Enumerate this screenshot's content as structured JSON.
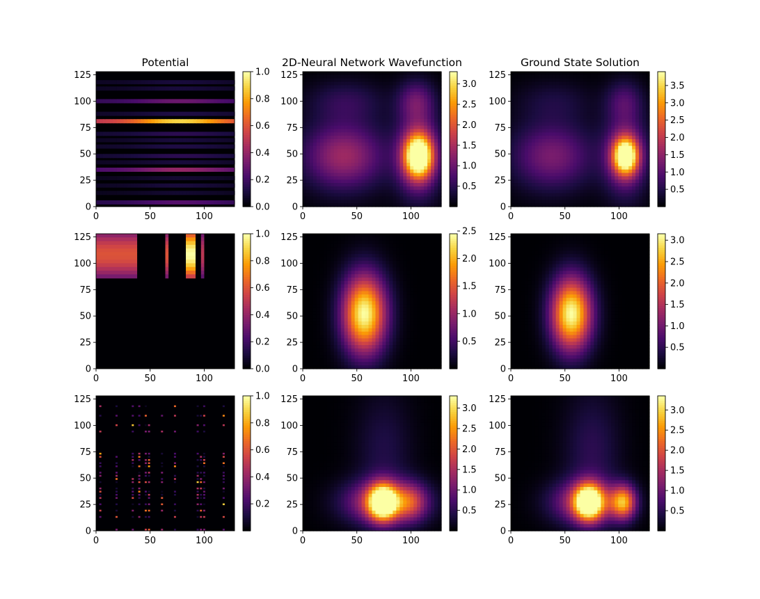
{
  "figure": {
    "colormap": "inferno",
    "colormap_stops": [
      "#000004",
      "#1b0c41",
      "#4a0c6b",
      "#781c6d",
      "#a52c60",
      "#cf4446",
      "#ed6925",
      "#fb9b06",
      "#f7d13d",
      "#fcffa4"
    ],
    "axis_tick_labels": [
      "0",
      "25",
      "50",
      "75",
      "100",
      "125"
    ],
    "x_tick_labels": [
      "0",
      "50",
      "100"
    ]
  },
  "chart_data": [
    {
      "type": "heatmap",
      "row": 1,
      "col": 1,
      "title": "Potential",
      "xlim": [
        0,
        128
      ],
      "ylim": [
        0,
        128
      ],
      "colorbar": {
        "vmin": 0.0,
        "vmax": 1.0,
        "ticks": [
          "0.0",
          "0.2",
          "0.4",
          "0.6",
          "0.8",
          "1.0"
        ]
      },
      "pattern": "horizontal_stripes",
      "stripes": [
        [
          81,
          0.9
        ],
        [
          100,
          0.3
        ],
        [
          35,
          0.4
        ],
        [
          48,
          0.15
        ],
        [
          57,
          0.12
        ],
        [
          63,
          0.1
        ],
        [
          69,
          0.15
        ],
        [
          88,
          0.12
        ],
        [
          112,
          0.1
        ],
        [
          118,
          0.1
        ],
        [
          20,
          0.1
        ],
        [
          13,
          0.08
        ],
        [
          4,
          0.25
        ],
        [
          27,
          0.08
        ],
        [
          42,
          0.1
        ]
      ]
    },
    {
      "type": "heatmap",
      "row": 1,
      "col": 2,
      "title": "2D-Neural Network Wavefunction",
      "xlim": [
        0,
        128
      ],
      "ylim": [
        0,
        128
      ],
      "colorbar": {
        "vmin": 0.0,
        "vmax": 3.3,
        "ticks": [
          "0.5",
          "1.0",
          "1.5",
          "2.0",
          "2.5",
          "3.0"
        ]
      },
      "blobs": [
        [
          107,
          48,
          9,
          14,
          3.2
        ],
        [
          107,
          48,
          14,
          26,
          1.5
        ],
        [
          105,
          100,
          12,
          14,
          0.9
        ],
        [
          38,
          48,
          26,
          22,
          1.4
        ],
        [
          40,
          100,
          25,
          14,
          0.5
        ]
      ]
    },
    {
      "type": "heatmap",
      "row": 1,
      "col": 3,
      "title": "Ground State Solution",
      "xlim": [
        0,
        128
      ],
      "ylim": [
        0,
        128
      ],
      "colorbar": {
        "vmin": 0.0,
        "vmax": 3.9,
        "ticks": [
          "0.5",
          "1.0",
          "1.5",
          "2.0",
          "2.5",
          "3.0",
          "3.5"
        ]
      },
      "blobs": [
        [
          106,
          48,
          8,
          12,
          3.8
        ],
        [
          106,
          48,
          14,
          26,
          1.5
        ],
        [
          105,
          100,
          12,
          14,
          0.8
        ],
        [
          38,
          48,
          26,
          22,
          1.3
        ],
        [
          40,
          100,
          25,
          14,
          0.4
        ]
      ]
    },
    {
      "type": "heatmap",
      "row": 2,
      "col": 1,
      "title": "",
      "xlim": [
        0,
        128
      ],
      "ylim": [
        0,
        128
      ],
      "colorbar": {
        "vmin": 0.0,
        "vmax": 1.0,
        "ticks": [
          "0.0",
          "0.2",
          "0.4",
          "0.6",
          "0.8",
          "1.0"
        ]
      },
      "pattern": "top_blocks",
      "blocks": [
        [
          0,
          38,
          0.6
        ],
        [
          64,
          67,
          0.6
        ],
        [
          83,
          92,
          1.0
        ],
        [
          97,
          100,
          0.5
        ]
      ],
      "block_y": [
        86,
        128
      ]
    },
    {
      "type": "heatmap",
      "row": 2,
      "col": 2,
      "title": "",
      "xlim": [
        0,
        128
      ],
      "ylim": [
        0,
        128
      ],
      "colorbar": {
        "vmin": 0.0,
        "vmax": 2.45,
        "ticks": [
          "0.5",
          "1.0",
          "1.5",
          "2.0",
          "2.5"
        ]
      },
      "blobs": [
        [
          57,
          52,
          14,
          26,
          2.45
        ]
      ]
    },
    {
      "type": "heatmap",
      "row": 2,
      "col": 3,
      "title": "",
      "xlim": [
        0,
        128
      ],
      "ylim": [
        0,
        128
      ],
      "colorbar": {
        "vmin": 0.0,
        "vmax": 3.15,
        "ticks": [
          "0.5",
          "1.0",
          "1.5",
          "2.0",
          "2.5",
          "3.0"
        ]
      },
      "blobs": [
        [
          56,
          52,
          13,
          24,
          3.15
        ]
      ]
    },
    {
      "type": "heatmap",
      "row": 3,
      "col": 1,
      "title": "",
      "xlim": [
        0,
        128
      ],
      "ylim": [
        0,
        128
      ],
      "colorbar": {
        "vmin": 0.0,
        "vmax": 1.0,
        "ticks": [
          "0.2",
          "0.4",
          "0.6",
          "0.8",
          "1.0"
        ]
      },
      "pattern": "sparse_grid"
    },
    {
      "type": "heatmap",
      "row": 3,
      "col": 2,
      "title": "",
      "xlim": [
        0,
        128
      ],
      "ylim": [
        0,
        128
      ],
      "colorbar": {
        "vmin": 0.0,
        "vmax": 3.3,
        "ticks": [
          "0.5",
          "1.0",
          "1.5",
          "2.0",
          "2.5",
          "3.0"
        ]
      },
      "blobs": [
        [
          74,
          27,
          9,
          12,
          3.2
        ],
        [
          76,
          27,
          25,
          14,
          1.8
        ],
        [
          100,
          27,
          10,
          12,
          1.0
        ],
        [
          75,
          75,
          18,
          40,
          0.4
        ]
      ]
    },
    {
      "type": "heatmap",
      "row": 3,
      "col": 3,
      "title": "",
      "xlim": [
        0,
        128
      ],
      "ylim": [
        0,
        128
      ],
      "colorbar": {
        "vmin": 0.0,
        "vmax": 3.35,
        "ticks": [
          "0.5",
          "1.0",
          "1.5",
          "2.0",
          "2.5",
          "3.0"
        ]
      },
      "blobs": [
        [
          72,
          27,
          9,
          12,
          3.3
        ],
        [
          70,
          27,
          22,
          14,
          1.6
        ],
        [
          104,
          27,
          8,
          11,
          2.4
        ],
        [
          75,
          75,
          18,
          40,
          0.5
        ]
      ]
    }
  ]
}
